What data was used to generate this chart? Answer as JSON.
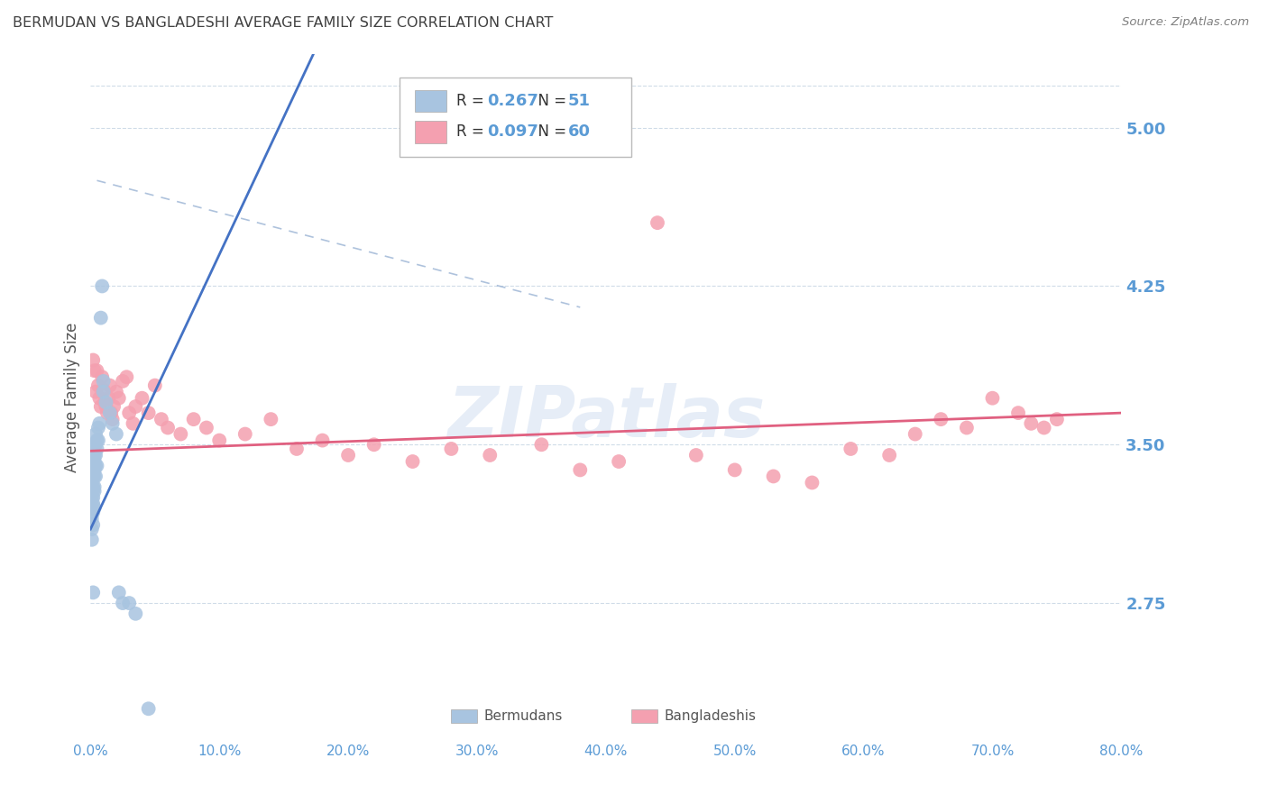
{
  "title": "BERMUDAN VS BANGLADESHI AVERAGE FAMILY SIZE CORRELATION CHART",
  "source": "Source: ZipAtlas.com",
  "ylabel": "Average Family Size",
  "right_yticks": [
    2.75,
    3.5,
    4.25,
    5.0
  ],
  "xlim": [
    0.0,
    0.8
  ],
  "ylim": [
    2.1,
    5.35
  ],
  "watermark": "ZIPatlas",
  "legend_r_bermuda": "0.267",
  "legend_n_bermuda": "51",
  "legend_r_bangla": "0.097",
  "legend_n_bangla": "60",
  "bermuda_color": "#a8c4e0",
  "bangla_color": "#f4a0b0",
  "bermuda_line_color": "#4472c4",
  "bangla_line_color": "#e06080",
  "ref_line_color": "#9ab3d4",
  "title_color": "#404040",
  "source_color": "#808080",
  "axis_color": "#5b9bd5",
  "grid_color": "#d0dce8",
  "bermuda_x": [
    0.001,
    0.001,
    0.001,
    0.001,
    0.001,
    0.001,
    0.001,
    0.001,
    0.002,
    0.002,
    0.002,
    0.002,
    0.002,
    0.002,
    0.002,
    0.002,
    0.002,
    0.002,
    0.002,
    0.003,
    0.003,
    0.003,
    0.003,
    0.003,
    0.003,
    0.003,
    0.003,
    0.004,
    0.004,
    0.004,
    0.004,
    0.004,
    0.005,
    0.005,
    0.005,
    0.006,
    0.006,
    0.007,
    0.008,
    0.009,
    0.01,
    0.01,
    0.012,
    0.015,
    0.017,
    0.02,
    0.022,
    0.025,
    0.03,
    0.035,
    0.045
  ],
  "bermuda_y": [
    3.4,
    3.35,
    3.3,
    3.25,
    3.2,
    3.15,
    3.1,
    3.05,
    3.45,
    3.4,
    3.38,
    3.35,
    3.3,
    3.28,
    3.25,
    3.22,
    3.18,
    3.12,
    2.8,
    3.5,
    3.45,
    3.42,
    3.38,
    3.35,
    3.3,
    3.28,
    3.2,
    3.55,
    3.5,
    3.45,
    3.4,
    3.35,
    3.52,
    3.48,
    3.4,
    3.58,
    3.52,
    3.6,
    4.1,
    4.25,
    3.8,
    3.75,
    3.7,
    3.65,
    3.6,
    3.55,
    2.8,
    2.75,
    2.75,
    2.7,
    2.25
  ],
  "bangla_x": [
    0.002,
    0.003,
    0.004,
    0.005,
    0.006,
    0.007,
    0.008,
    0.009,
    0.01,
    0.011,
    0.012,
    0.013,
    0.014,
    0.015,
    0.016,
    0.017,
    0.018,
    0.02,
    0.022,
    0.025,
    0.028,
    0.03,
    0.033,
    0.035,
    0.04,
    0.045,
    0.05,
    0.055,
    0.06,
    0.07,
    0.08,
    0.09,
    0.1,
    0.12,
    0.14,
    0.16,
    0.18,
    0.2,
    0.22,
    0.25,
    0.28,
    0.31,
    0.35,
    0.38,
    0.41,
    0.44,
    0.47,
    0.5,
    0.53,
    0.56,
    0.59,
    0.62,
    0.64,
    0.66,
    0.68,
    0.7,
    0.72,
    0.73,
    0.74,
    0.75
  ],
  "bangla_y": [
    3.9,
    3.85,
    3.75,
    3.85,
    3.78,
    3.72,
    3.68,
    3.82,
    3.76,
    3.7,
    3.68,
    3.65,
    3.72,
    3.78,
    3.65,
    3.62,
    3.68,
    3.75,
    3.72,
    3.8,
    3.82,
    3.65,
    3.6,
    3.68,
    3.72,
    3.65,
    3.78,
    3.62,
    3.58,
    3.55,
    3.62,
    3.58,
    3.52,
    3.55,
    3.62,
    3.48,
    3.52,
    3.45,
    3.5,
    3.42,
    3.48,
    3.45,
    3.5,
    3.38,
    3.42,
    4.55,
    3.45,
    3.38,
    3.35,
    3.32,
    3.48,
    3.45,
    3.55,
    3.62,
    3.58,
    3.72,
    3.65,
    3.6,
    3.58,
    3.62
  ]
}
